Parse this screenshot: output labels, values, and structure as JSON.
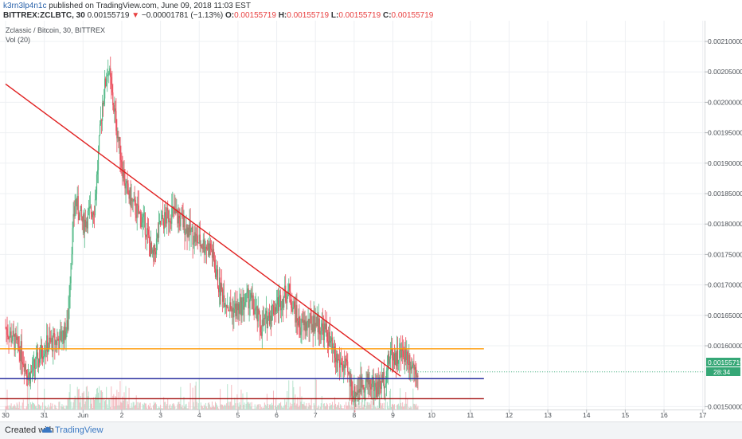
{
  "header": {
    "author": "k3rn3lp4n1c",
    "published_text": "published on TradingView.com, June 09, 2018 11:03 EST",
    "symbol": "BITTREX:ZCLBTC, 30",
    "price": "0.00155719",
    "change": "−0.00001781 (−1.13%)",
    "o_label": "O:",
    "o_val": "0.00155719",
    "h_label": "H:",
    "h_val": "0.00155719",
    "l_label": "L:",
    "l_val": "0.00155719",
    "c_label": "C:",
    "c_val": "0.00155719"
  },
  "legend": {
    "title": "Zclassic / Bitcoin, 30, BITTREX",
    "volume": "Vol (20)"
  },
  "price_tag": "0.00155719",
  "countdown_tag": "28:34",
  "footer": {
    "created_with": "Created with",
    "brand": "TradingView"
  },
  "colors": {
    "up": "#53b987",
    "down": "#eb4d5c",
    "trendline": "#e02020",
    "resistance": "#ff9800",
    "support": "#2a2f9e",
    "floor": "#a31010",
    "price_tag": "#35a776"
  },
  "chart_data": {
    "type": "candlestick",
    "symbol": "ZCL/BTC",
    "interval": "30",
    "x_tick_labels": [
      "30",
      "31",
      "Jun",
      "2",
      "3",
      "4",
      "5",
      "6",
      "7",
      "8",
      "9",
      "10",
      "11",
      "12",
      "13",
      "14",
      "15",
      "16",
      "17"
    ],
    "y_tick_labels": [
      "0.00210000",
      "0.00205000",
      "0.00200000",
      "0.00195000",
      "0.00190000",
      "0.00185000",
      "0.00180000",
      "0.00175000",
      "0.00170000",
      "0.00165000",
      "0.00160000",
      "0.00150000"
    ],
    "ylim": [
      0.00148,
      0.00212
    ],
    "xlim_days": [
      30,
      48.0
    ],
    "price_path": [
      {
        "x": 30.0,
        "y": 0.00163
      },
      {
        "x": 30.4,
        "y": 0.00159
      },
      {
        "x": 30.6,
        "y": 0.00155
      },
      {
        "x": 30.8,
        "y": 0.00157
      },
      {
        "x": 31.0,
        "y": 0.0016
      },
      {
        "x": 31.4,
        "y": 0.00161
      },
      {
        "x": 31.6,
        "y": 0.00163
      },
      {
        "x": 31.7,
        "y": 0.00176
      },
      {
        "x": 31.8,
        "y": 0.00184
      },
      {
        "x": 32.0,
        "y": 0.0018
      },
      {
        "x": 32.3,
        "y": 0.00183
      },
      {
        "x": 32.5,
        "y": 0.002
      },
      {
        "x": 32.65,
        "y": 0.00206
      },
      {
        "x": 32.75,
        "y": 0.00201
      },
      {
        "x": 33.0,
        "y": 0.0019
      },
      {
        "x": 33.1,
        "y": 0.00186
      },
      {
        "x": 33.3,
        "y": 0.00183
      },
      {
        "x": 33.6,
        "y": 0.0018
      },
      {
        "x": 33.8,
        "y": 0.00174
      },
      {
        "x": 34.0,
        "y": 0.0018
      },
      {
        "x": 34.3,
        "y": 0.00182
      },
      {
        "x": 34.6,
        "y": 0.0018
      },
      {
        "x": 35.0,
        "y": 0.00177
      },
      {
        "x": 35.3,
        "y": 0.00176
      },
      {
        "x": 35.5,
        "y": 0.0017
      },
      {
        "x": 35.8,
        "y": 0.00166
      },
      {
        "x": 36.0,
        "y": 0.00166
      },
      {
        "x": 36.3,
        "y": 0.00168
      },
      {
        "x": 36.6,
        "y": 0.00163
      },
      {
        "x": 36.9,
        "y": 0.00166
      },
      {
        "x": 37.3,
        "y": 0.00169
      },
      {
        "x": 37.6,
        "y": 0.00163
      },
      {
        "x": 38.0,
        "y": 0.00164
      },
      {
        "x": 38.3,
        "y": 0.00162
      },
      {
        "x": 38.5,
        "y": 0.00158
      },
      {
        "x": 38.8,
        "y": 0.00156
      },
      {
        "x": 39.0,
        "y": 0.00152
      },
      {
        "x": 39.2,
        "y": 0.00154
      },
      {
        "x": 39.4,
        "y": 0.00154
      },
      {
        "x": 39.6,
        "y": 0.00153
      },
      {
        "x": 39.8,
        "y": 0.00155
      },
      {
        "x": 39.95,
        "y": 0.00159
      },
      {
        "x": 40.1,
        "y": 0.00158
      },
      {
        "x": 40.3,
        "y": 0.00159
      },
      {
        "x": 40.5,
        "y": 0.00157
      },
      {
        "x": 40.65,
        "y": 0.00156
      }
    ],
    "trendline": {
      "from": {
        "x": 30.0,
        "y": 0.00203
      },
      "to": {
        "x": 40.2,
        "y": 0.00155
      }
    },
    "horizontal_levels": [
      {
        "y": 0.001595,
        "color_key": "resistance",
        "x_end": 42.35
      },
      {
        "y": 0.001546,
        "color_key": "support",
        "x_end": 42.35
      },
      {
        "y": 0.001513,
        "color_key": "floor",
        "x_end": 42.35
      }
    ],
    "last_price": 0.00155719
  }
}
